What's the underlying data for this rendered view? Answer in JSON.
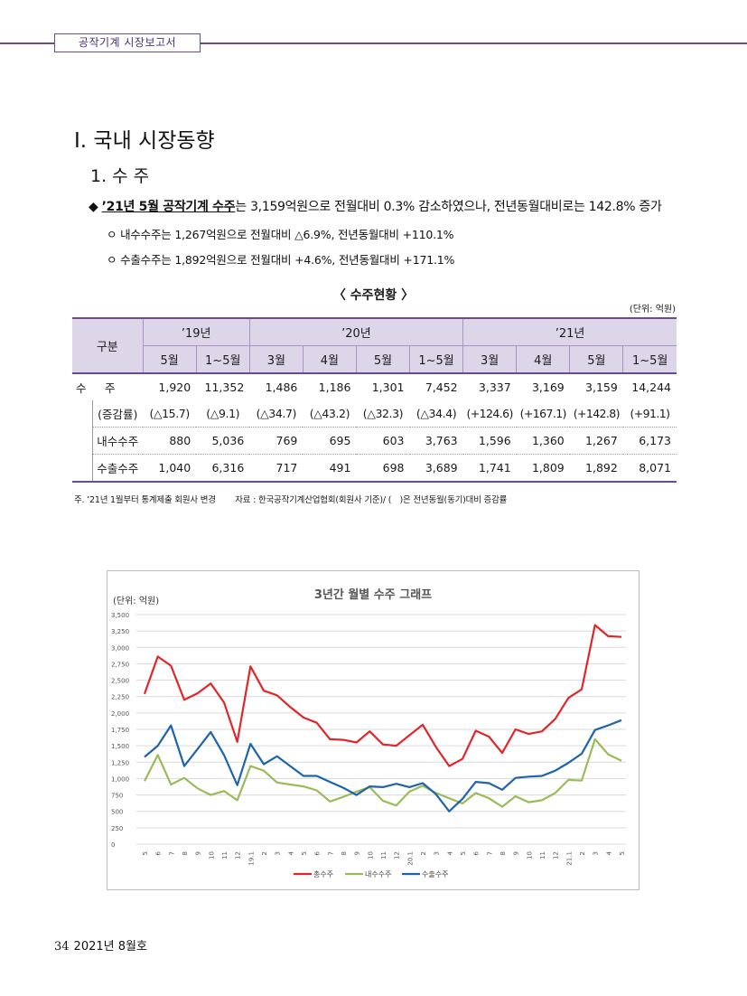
{
  "header": {
    "label": "공작기계 시장보고서"
  },
  "section": {
    "title": "Ⅰ. 국내 시장동향",
    "subtitle": "1. 수 주"
  },
  "bullets": {
    "main_prefix": "◆ ",
    "main_underlined": "’21년 5월 공작기계 수주",
    "main_rest": "는 3,159억원으로 전월대비 0.3% 감소하였으나, 전년동월대비로는 142.8% 증가",
    "sub1": "ㅇ 내수수주는 1,267억원으로 전월대비 △6.9%, 전년동월대비 +110.1%",
    "sub2": "ㅇ 수출수주는 1,892억원으로 전월대비 +4.6%, 전년동월대비 +171.1%"
  },
  "table": {
    "title": "〈 수주현황 〉",
    "unit": "(단위: 억원)",
    "corner": "구분",
    "years": [
      "’19년",
      "’20년",
      "’21년"
    ],
    "months": [
      "5월",
      "1~5월",
      "3월",
      "4월",
      "5월",
      "1~5월",
      "3월",
      "4월",
      "5월",
      "1~5월"
    ],
    "rows": [
      {
        "label": "수　주",
        "values": [
          "1,920",
          "11,352",
          "1,486",
          "1,186",
          "1,301",
          "7,452",
          "3,337",
          "3,169",
          "3,159",
          "14,244"
        ]
      },
      {
        "label": "(증감률)",
        "values": [
          "(△15.7)",
          "(△9.1)",
          "(△34.7)",
          "(△43.2)",
          "(△32.3)",
          "(△34.4)",
          "(+124.6)",
          "(+167.1)",
          "(+142.8)",
          "(+91.1)"
        ]
      },
      {
        "label": "내수수주",
        "values": [
          "880",
          "5,036",
          "769",
          "695",
          "603",
          "3,763",
          "1,596",
          "1,360",
          "1,267",
          "6,173"
        ]
      },
      {
        "label": "수출수주",
        "values": [
          "1,040",
          "6,316",
          "717",
          "491",
          "698",
          "3,689",
          "1,741",
          "1,809",
          "1,892",
          "8,071"
        ]
      }
    ],
    "note": "주. ’21년 1월부터 통계제출 회원사 변경　　 자료 : 한국공작기계산업협회(회원사 기준)/ (　)은 전년동월(동기)대비 증감률"
  },
  "chart_data": {
    "type": "line",
    "title": "3년간 월별 수주 그래프",
    "ylabel": "(단위: 억원)",
    "ylim": [
      0,
      3500
    ],
    "yticks": [
      "0",
      "250",
      "500",
      "750",
      "1,000",
      "1,250",
      "1,500",
      "1,750",
      "2,000",
      "2,250",
      "2,500",
      "2,750",
      "3,000",
      "3,250",
      "3,500"
    ],
    "categories": [
      "5",
      "6",
      "7",
      "8",
      "9",
      "10",
      "11",
      "12",
      "19.1",
      "2",
      "3",
      "4",
      "5",
      "6",
      "7",
      "8",
      "9",
      "10",
      "11",
      "12",
      "20.1",
      "2",
      "3",
      "4",
      "5",
      "6",
      "7",
      "8",
      "9",
      "10",
      "11",
      "12",
      "21.1",
      "2",
      "3",
      "4",
      "5"
    ],
    "series": [
      {
        "name": "총수주",
        "color": "#e0262b",
        "values": [
          2290,
          2860,
          2720,
          2200,
          2300,
          2450,
          2160,
          1560,
          2710,
          2340,
          2270,
          2090,
          1930,
          1850,
          1600,
          1590,
          1550,
          1720,
          1520,
          1500,
          1660,
          1820,
          1480,
          1190,
          1300,
          1730,
          1640,
          1390,
          1750,
          1680,
          1720,
          1910,
          2230,
          2360,
          3340,
          3170,
          3160
        ]
      },
      {
        "name": "내수수주",
        "color": "#9bbb59",
        "values": [
          960,
          1360,
          910,
          1010,
          850,
          750,
          810,
          670,
          1190,
          1120,
          940,
          910,
          880,
          820,
          650,
          720,
          800,
          870,
          660,
          590,
          800,
          890,
          780,
          700,
          620,
          780,
          700,
          570,
          730,
          640,
          670,
          780,
          980,
          970,
          1600,
          1370,
          1270
        ]
      },
      {
        "name": "수출수주",
        "color": "#1f64a9",
        "values": [
          1330,
          1500,
          1810,
          1190,
          1450,
          1710,
          1360,
          900,
          1530,
          1220,
          1340,
          1190,
          1040,
          1040,
          950,
          860,
          750,
          880,
          870,
          920,
          870,
          930,
          760,
          500,
          690,
          950,
          930,
          830,
          1010,
          1030,
          1040,
          1120,
          1240,
          1380,
          1740,
          1810,
          1890
        ]
      }
    ],
    "grid": true,
    "legend": "bottom"
  },
  "footer": {
    "page": "34",
    "issue": "2021년 8월호"
  }
}
